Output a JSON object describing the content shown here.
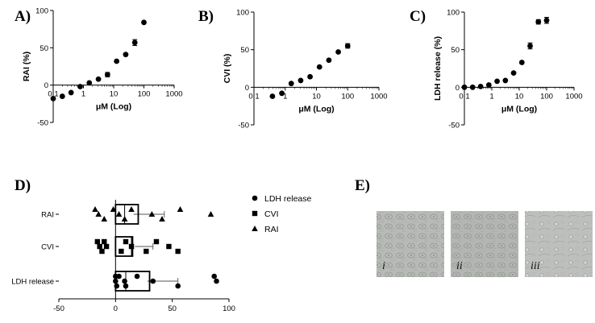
{
  "chart_data": [
    {
      "panel": "A)",
      "type": "scatter",
      "xscale": "log",
      "x_tick_values": [
        0.1,
        1,
        10,
        100,
        1000
      ],
      "x_tick_labels": [
        "0.1",
        "1",
        "10",
        "100",
        "1000"
      ],
      "y_ticks": [
        -50,
        0,
        50,
        100
      ],
      "ylim": [
        -50,
        100
      ],
      "xlabel": "μM (Log)",
      "ylabel": "RAI (%)",
      "series": [
        {
          "x": [
            0.1,
            0.2,
            0.39,
            0.78,
            1.56,
            3.13,
            6.25,
            12.5,
            25,
            50,
            100
          ],
          "y": [
            -18,
            -15,
            -10,
            -2,
            3,
            8,
            14,
            32,
            41,
            57,
            84
          ],
          "err": [
            0,
            0,
            0,
            0,
            0,
            0,
            3,
            0,
            0,
            4,
            0
          ]
        }
      ]
    },
    {
      "panel": "B)",
      "type": "scatter",
      "xscale": "log",
      "x_tick_values": [
        0.1,
        1,
        10,
        100,
        1000
      ],
      "x_tick_labels": [
        "0.1",
        "1",
        "10",
        "100",
        "1000"
      ],
      "y_ticks": [
        -50,
        0,
        50,
        100
      ],
      "ylim": [
        -50,
        100
      ],
      "xlabel": "μM (Log)",
      "ylabel": "CVI (%)",
      "series": [
        {
          "x": [
            0.39,
            0.78,
            1.56,
            3.13,
            6.25,
            12.5,
            25,
            50,
            100
          ],
          "y": [
            -12,
            -8,
            5,
            9,
            14,
            27,
            36,
            47,
            55
          ],
          "err": [
            0,
            0,
            0,
            0,
            0,
            0,
            0,
            0,
            3
          ]
        }
      ]
    },
    {
      "panel": "C)",
      "type": "scatter",
      "xscale": "log",
      "x_tick_values": [
        0.1,
        1,
        10,
        100,
        1000
      ],
      "x_tick_labels": [
        "0.1",
        "1",
        "10",
        "100",
        "1000"
      ],
      "y_ticks": [
        -50,
        0,
        50,
        100
      ],
      "ylim": [
        -50,
        100
      ],
      "xlabel": "μM (Log)",
      "ylabel": "LDH release (%)",
      "series": [
        {
          "x": [
            0.1,
            0.2,
            0.39,
            0.78,
            1.56,
            3.13,
            6.25,
            12.5,
            25,
            50,
            100
          ],
          "y": [
            0,
            0,
            1,
            3,
            8,
            9,
            19,
            33,
            55,
            87,
            89
          ],
          "err": [
            0,
            0,
            0,
            0,
            0,
            0,
            0,
            0,
            4,
            3,
            4
          ]
        }
      ]
    },
    {
      "panel": "D)",
      "type": "box",
      "orientation": "horizontal",
      "categories": [
        "RAI",
        "CVI",
        "LDH release"
      ],
      "xlim": [
        -50,
        100
      ],
      "x_ticks": [
        -50,
        0,
        50,
        100
      ],
      "legend": [
        {
          "marker": "circle",
          "label": "LDH release"
        },
        {
          "marker": "square",
          "label": "CVI"
        },
        {
          "marker": "triangle",
          "label": "RAI"
        }
      ],
      "legend_position": "right",
      "boxes": [
        {
          "category": "RAI",
          "marker": "triangle",
          "q1": 0,
          "median": 8,
          "q3": 20,
          "mean": 16,
          "upper_whisker": 43,
          "points": [
            -18,
            -15,
            -10,
            -2,
            3,
            8,
            14,
            32,
            41,
            57,
            84
          ]
        },
        {
          "category": "CVI",
          "marker": "square",
          "q1": 0,
          "median": 14,
          "q3": 15,
          "mean": 17,
          "upper_whisker": 33,
          "points": [
            -16,
            -14,
            -12,
            -10,
            -8,
            5,
            9,
            14,
            27,
            36,
            47,
            55
          ]
        },
        {
          "category": "LDH release",
          "marker": "circle",
          "q1": 0,
          "median": 9,
          "q3": 30,
          "mean": 28,
          "upper_whisker": 55,
          "points": [
            0,
            0,
            1,
            3,
            8,
            9,
            19,
            33,
            55,
            87,
            89
          ]
        }
      ]
    }
  ],
  "panel_e": {
    "letter": "E)",
    "images": [
      {
        "label": "i",
        "tone": "#b7bab6"
      },
      {
        "label": "ii",
        "tone": "#b3b6b2"
      },
      {
        "label": "iii",
        "tone": "#bdbfbc"
      }
    ]
  }
}
